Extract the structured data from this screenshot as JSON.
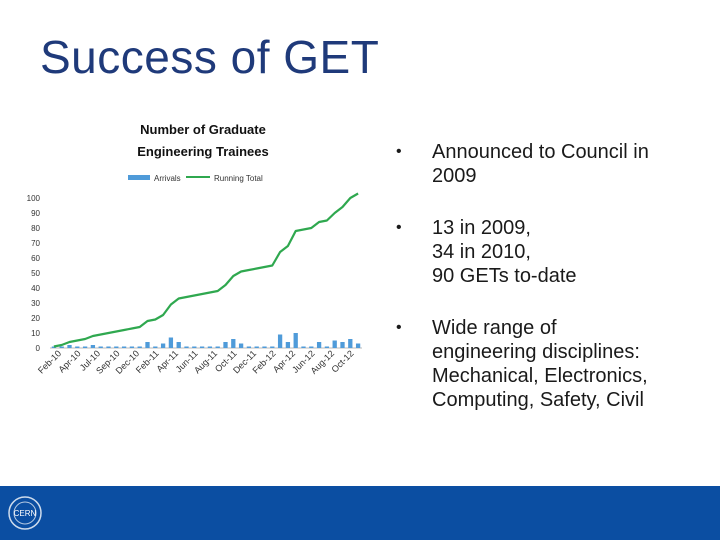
{
  "slide": {
    "title": "Success of GET"
  },
  "bullets": [
    {
      "lines": [
        "Announced to Council in",
        "2009"
      ]
    },
    {
      "lines": [
        "13 in 2009,",
        "34 in 2010,",
        "90 GETs to-date"
      ]
    },
    {
      "lines": [
        "Wide range of",
        "engineering disciplines:",
        "Mechanical, Electronics,",
        "Computing,  Safety, Civil"
      ]
    }
  ],
  "footer": {
    "logo_text": "CERN",
    "color": "#0b4ea2"
  },
  "chart_data": {
    "type": "bar",
    "title": "Number of Graduate Engineering Trainees",
    "legend_position": "top",
    "ylim": [
      0,
      100
    ],
    "yticks": [
      0,
      10,
      20,
      30,
      40,
      50,
      60,
      70,
      80,
      90,
      100
    ],
    "xtick_labels": [
      "Feb-10",
      "Apr-10",
      "Jul-10",
      "Sep-10",
      "Dec-10",
      "Feb-11",
      "Apr-11",
      "Jun-11",
      "Aug-11",
      "Oct-11",
      "Dec-11",
      "Feb-12",
      "Apr-12",
      "Jun-12",
      "Aug-12",
      "Oct-12"
    ],
    "series": [
      {
        "name": "Arrivals",
        "type": "bar",
        "color": "#4f9bd9",
        "values": [
          1,
          1,
          2,
          1,
          1,
          2,
          1,
          1,
          1,
          1,
          1,
          1,
          4,
          1,
          3,
          7,
          4,
          1,
          1,
          1,
          1,
          1,
          4,
          6,
          3,
          1,
          1,
          1,
          1,
          9,
          4,
          10,
          1,
          1,
          4,
          1,
          5,
          4,
          6,
          3
        ]
      },
      {
        "name": "Running Total",
        "type": "line",
        "color": "#2fa84f",
        "values": [
          1,
          2,
          4,
          5,
          6,
          8,
          9,
          10,
          11,
          12,
          13,
          14,
          18,
          19,
          22,
          29,
          33,
          34,
          35,
          36,
          37,
          38,
          42,
          48,
          51,
          52,
          53,
          54,
          55,
          64,
          68,
          78,
          79,
          80,
          84,
          85,
          90,
          94,
          100,
          103
        ]
      }
    ],
    "grid": false
  }
}
